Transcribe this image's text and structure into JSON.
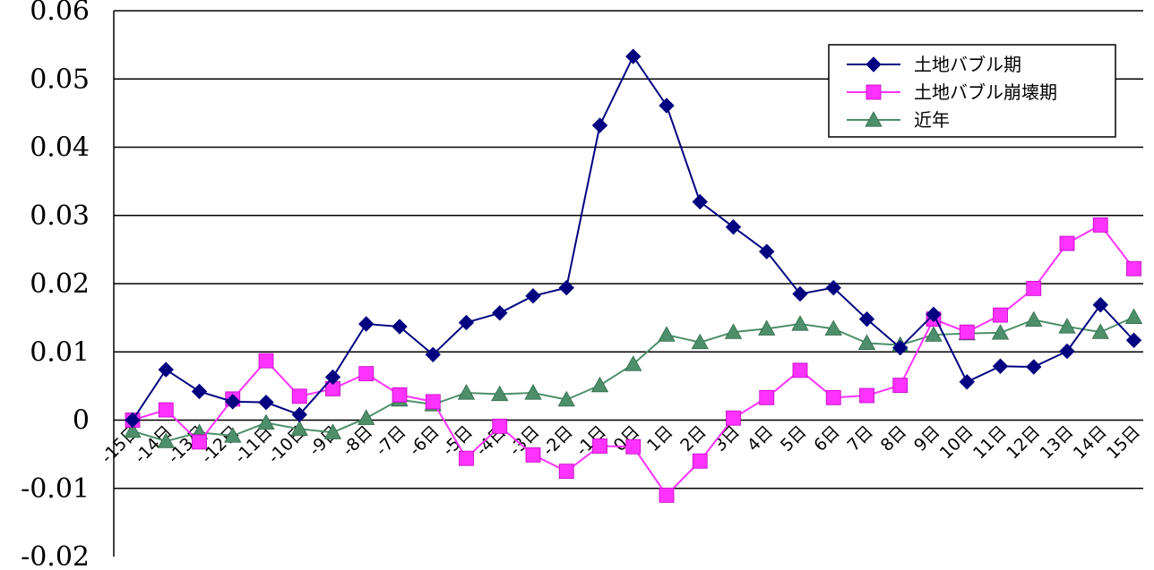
{
  "chart_data": {
    "type": "line",
    "title": "",
    "xlabel": "",
    "ylabel": "",
    "ylim": [
      -0.02,
      0.06
    ],
    "y_ticks": [
      "0.06",
      "0.05",
      "0.04",
      "0.03",
      "0.02",
      "0.01",
      "0",
      "-0.01",
      "-0.02"
    ],
    "y_tick_values": [
      0.06,
      0.05,
      0.04,
      0.03,
      0.02,
      0.01,
      0,
      -0.01,
      -0.02
    ],
    "grid": "horizontal",
    "legend_position": "top-right",
    "categories": [
      "-15日",
      "-14日",
      "-13日",
      "-12日",
      "-11日",
      "-10日",
      "-9日",
      "-8日",
      "-7日",
      "-6日",
      "-5日",
      "-4日",
      "-3日",
      "-2日",
      "-1日",
      "0日",
      "1日",
      "2日",
      "3日",
      "4日",
      "5日",
      "6日",
      "7日",
      "8日",
      "9日",
      "10日",
      "11日",
      "12日",
      "13日",
      "14日",
      "15日"
    ],
    "series": [
      {
        "name": "土地バブル期",
        "color": "#000080",
        "marker": "diamond",
        "values": [
          0.0,
          0.0074,
          0.0042,
          0.0027,
          0.0026,
          0.0008,
          0.0063,
          0.0141,
          0.0137,
          0.0096,
          0.0143,
          0.0157,
          0.0182,
          0.0194,
          0.0432,
          0.0533,
          0.0461,
          0.032,
          0.0283,
          0.0247,
          0.0185,
          0.0194,
          0.0148,
          0.0106,
          0.0155,
          0.0056,
          0.0079,
          0.0078,
          0.0101,
          0.0169,
          0.0117
        ]
      },
      {
        "name": "土地バブル崩壊期",
        "color": "#ff33ff",
        "marker": "square",
        "values": [
          0.0,
          0.0015,
          -0.0032,
          0.0031,
          0.0087,
          0.0035,
          0.0046,
          0.0068,
          0.0037,
          0.0027,
          -0.0056,
          -0.0009,
          -0.0051,
          -0.0075,
          -0.0038,
          -0.0039,
          -0.011,
          -0.006,
          0.0003,
          0.0033,
          0.0073,
          0.0033,
          0.0036,
          0.0051,
          0.0148,
          0.0129,
          0.0154,
          0.0193,
          0.0259,
          0.0286,
          0.0222
        ]
      },
      {
        "name": "近年",
        "color": "#4d8f6a",
        "marker": "triangle",
        "values": [
          -0.0016,
          -0.0031,
          -0.0018,
          -0.0023,
          -0.0004,
          -0.0013,
          -0.0018,
          0.0003,
          0.003,
          0.0023,
          0.004,
          0.0038,
          0.004,
          0.003,
          0.0051,
          0.0082,
          0.0125,
          0.0114,
          0.0129,
          0.0134,
          0.0141,
          0.0134,
          0.0113,
          0.011,
          0.0125,
          0.0127,
          0.0128,
          0.0147,
          0.0137,
          0.0129,
          0.0151
        ]
      }
    ]
  }
}
